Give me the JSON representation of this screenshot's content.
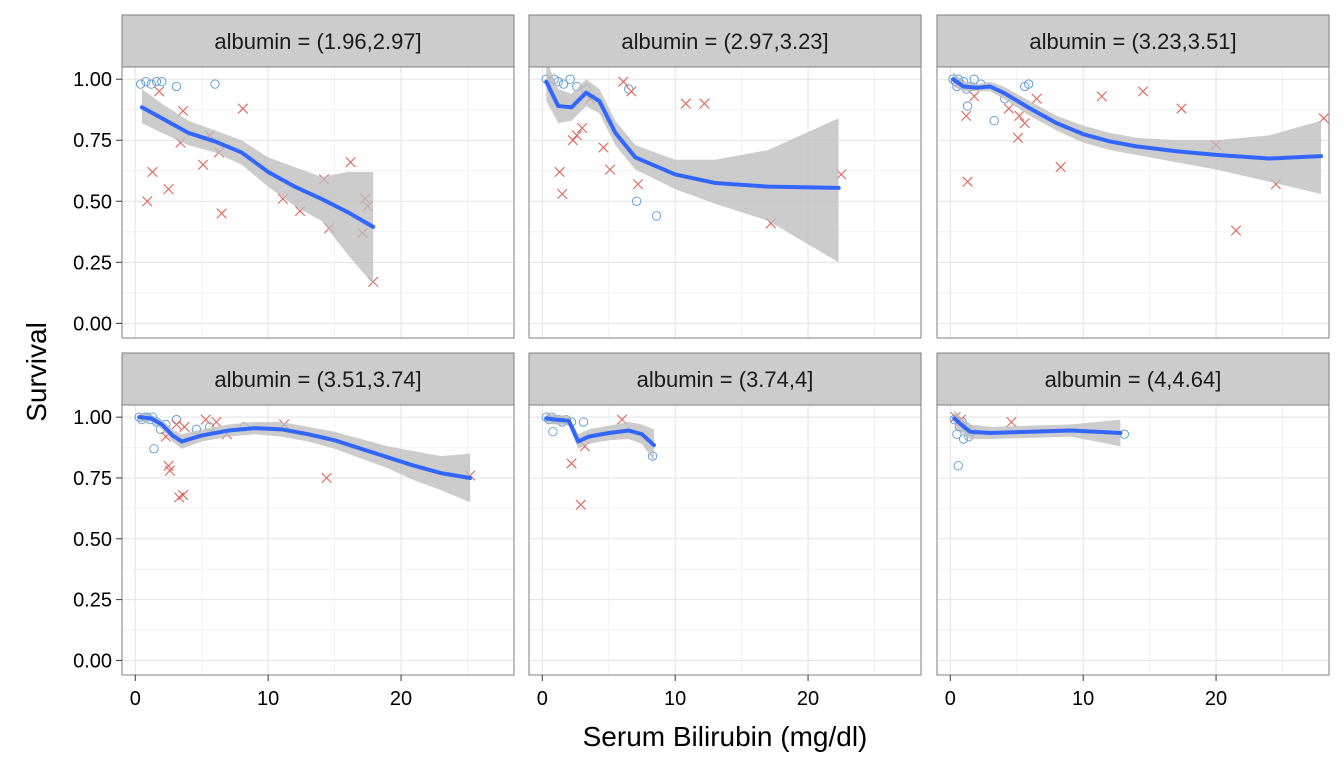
{
  "chart_data": {
    "type": "scatter",
    "xlabel": "Serum Bilirubin (mg/dl)",
    "ylabel": "Survival",
    "xlim": [
      -1,
      28.5
    ],
    "ylim": [
      -0.06,
      1.05
    ],
    "x_ticks": [
      0,
      10,
      20
    ],
    "y_ticks": [
      0.0,
      0.25,
      0.5,
      0.75,
      1.0
    ],
    "y_tick_labels": [
      "0.00",
      "0.25",
      "0.50",
      "0.75",
      "1.00"
    ],
    "grid": true,
    "facet_layout": "2x3",
    "colors": {
      "censored": "#5b9bd5",
      "event": "#e0645a",
      "smooth": "#3366ff",
      "ribbon": "#bebebe",
      "strip": "#cccccc"
    },
    "panels": [
      {
        "label": "albumin = (1.96,2.97]",
        "circles": [
          [
            0.4,
            0.98
          ],
          [
            0.8,
            0.99
          ],
          [
            1.2,
            0.98
          ],
          [
            1.6,
            0.99
          ],
          [
            2.0,
            0.99
          ],
          [
            3.1,
            0.97
          ],
          [
            6.0,
            0.98
          ]
        ],
        "crosses": [
          [
            0.9,
            0.5
          ],
          [
            1.3,
            0.62
          ],
          [
            1.8,
            0.95
          ],
          [
            2.5,
            0.55
          ],
          [
            3.4,
            0.74
          ],
          [
            3.6,
            0.87
          ],
          [
            5.1,
            0.65
          ],
          [
            5.6,
            0.77
          ],
          [
            6.3,
            0.7
          ],
          [
            6.5,
            0.45
          ],
          [
            8.1,
            0.88
          ],
          [
            11.1,
            0.51
          ],
          [
            12.4,
            0.46
          ],
          [
            14.2,
            0.59
          ],
          [
            14.6,
            0.39
          ],
          [
            16.2,
            0.66
          ],
          [
            17.1,
            0.37
          ],
          [
            17.3,
            0.51
          ],
          [
            17.5,
            0.48
          ],
          [
            17.9,
            0.17
          ]
        ],
        "smooth": [
          [
            0.5,
            0.885
          ],
          [
            2,
            0.84
          ],
          [
            4,
            0.78
          ],
          [
            6,
            0.745
          ],
          [
            8,
            0.7
          ],
          [
            10,
            0.62
          ],
          [
            12,
            0.56
          ],
          [
            14,
            0.51
          ],
          [
            16,
            0.455
          ],
          [
            17.9,
            0.395
          ]
        ],
        "band": [
          [
            0.5,
            0.82,
            0.96
          ],
          [
            2,
            0.78,
            0.9
          ],
          [
            4,
            0.73,
            0.83
          ],
          [
            6,
            0.7,
            0.79
          ],
          [
            8,
            0.65,
            0.75
          ],
          [
            10,
            0.56,
            0.68
          ],
          [
            12,
            0.48,
            0.64
          ],
          [
            14,
            0.42,
            0.6
          ],
          [
            16,
            0.28,
            0.62
          ],
          [
            17.9,
            0.16,
            0.62
          ]
        ]
      },
      {
        "label": "albumin = (2.97,3.23]",
        "circles": [
          [
            0.3,
            1.0
          ],
          [
            0.6,
            0.99
          ],
          [
            0.9,
            1.0
          ],
          [
            1.2,
            0.99
          ],
          [
            1.6,
            0.98
          ],
          [
            2.1,
            1.0
          ],
          [
            2.6,
            0.97
          ],
          [
            3.3,
            0.96
          ],
          [
            6.5,
            0.96
          ],
          [
            7.1,
            0.5
          ],
          [
            8.6,
            0.44
          ]
        ],
        "crosses": [
          [
            1.3,
            0.62
          ],
          [
            1.5,
            0.53
          ],
          [
            2.3,
            0.75
          ],
          [
            2.6,
            0.77
          ],
          [
            3.0,
            0.8
          ],
          [
            3.6,
            0.92
          ],
          [
            4.6,
            0.72
          ],
          [
            5.1,
            0.63
          ],
          [
            6.1,
            0.99
          ],
          [
            6.7,
            0.95
          ],
          [
            7.2,
            0.57
          ],
          [
            10.8,
            0.9
          ],
          [
            12.2,
            0.9
          ],
          [
            17.2,
            0.41
          ],
          [
            22.5,
            0.61
          ]
        ],
        "smooth": [
          [
            0.3,
            0.99
          ],
          [
            1.2,
            0.89
          ],
          [
            2.2,
            0.885
          ],
          [
            3.3,
            0.945
          ],
          [
            4.3,
            0.91
          ],
          [
            5.5,
            0.78
          ],
          [
            7,
            0.68
          ],
          [
            10,
            0.61
          ],
          [
            13,
            0.575
          ],
          [
            17,
            0.56
          ],
          [
            22.3,
            0.555
          ]
        ],
        "band": [
          [
            0.3,
            0.91,
            1.08
          ],
          [
            1.2,
            0.82,
            0.96
          ],
          [
            2.2,
            0.83,
            0.94
          ],
          [
            3.3,
            0.89,
            1.0
          ],
          [
            4.3,
            0.86,
            0.96
          ],
          [
            5.5,
            0.73,
            0.83
          ],
          [
            7,
            0.63,
            0.73
          ],
          [
            10,
            0.55,
            0.67
          ],
          [
            13,
            0.49,
            0.67
          ],
          [
            17,
            0.42,
            0.71
          ],
          [
            22.3,
            0.25,
            0.84
          ]
        ]
      },
      {
        "label": "albumin = (3.23,3.51]",
        "circles": [
          [
            0.2,
            1.0
          ],
          [
            0.4,
            0.99
          ],
          [
            0.5,
            0.97
          ],
          [
            0.6,
            1.0
          ],
          [
            0.8,
            0.98
          ],
          [
            1.0,
            0.99
          ],
          [
            1.2,
            0.96
          ],
          [
            1.3,
            0.89
          ],
          [
            1.5,
            0.97
          ],
          [
            1.8,
            1.0
          ],
          [
            2.3,
            0.98
          ],
          [
            3.3,
            0.83
          ],
          [
            4.1,
            0.92
          ],
          [
            5.6,
            0.97
          ],
          [
            5.9,
            0.98
          ]
        ],
        "crosses": [
          [
            1.2,
            0.85
          ],
          [
            1.3,
            0.58
          ],
          [
            1.8,
            0.93
          ],
          [
            4.4,
            0.88
          ],
          [
            5.1,
            0.76
          ],
          [
            5.2,
            0.85
          ],
          [
            5.6,
            0.82
          ],
          [
            6.5,
            0.92
          ],
          [
            8.3,
            0.64
          ],
          [
            11.4,
            0.93
          ],
          [
            14.5,
            0.95
          ],
          [
            17.4,
            0.88
          ],
          [
            20.0,
            0.73
          ],
          [
            21.5,
            0.38
          ],
          [
            24.5,
            0.57
          ],
          [
            28.1,
            0.84
          ]
        ],
        "smooth": [
          [
            0.2,
            1.0
          ],
          [
            1,
            0.97
          ],
          [
            2,
            0.965
          ],
          [
            3,
            0.97
          ],
          [
            4,
            0.945
          ],
          [
            6,
            0.88
          ],
          [
            8,
            0.82
          ],
          [
            10,
            0.775
          ],
          [
            12,
            0.745
          ],
          [
            14,
            0.725
          ],
          [
            17,
            0.705
          ],
          [
            20,
            0.69
          ],
          [
            24,
            0.675
          ],
          [
            27.9,
            0.685
          ]
        ],
        "band": [
          [
            0.2,
            0.97,
            1.03
          ],
          [
            1,
            0.95,
            0.99
          ],
          [
            2,
            0.95,
            0.98
          ],
          [
            3,
            0.95,
            0.99
          ],
          [
            4,
            0.92,
            0.97
          ],
          [
            6,
            0.85,
            0.91
          ],
          [
            8,
            0.79,
            0.85
          ],
          [
            10,
            0.74,
            0.81
          ],
          [
            12,
            0.71,
            0.78
          ],
          [
            14,
            0.69,
            0.76
          ],
          [
            17,
            0.66,
            0.75
          ],
          [
            20,
            0.63,
            0.75
          ],
          [
            24,
            0.58,
            0.77
          ],
          [
            27.9,
            0.53,
            0.83
          ]
        ]
      },
      {
        "label": "albumin = (3.51,3.74]",
        "circles": [
          [
            0.3,
            1.0
          ],
          [
            0.5,
            0.99
          ],
          [
            0.7,
            1.0
          ],
          [
            0.9,
            1.0
          ],
          [
            1.1,
            0.99
          ],
          [
            1.3,
            1.0
          ],
          [
            1.4,
            0.87
          ],
          [
            1.6,
            0.98
          ],
          [
            1.9,
            0.95
          ],
          [
            2.3,
            0.97
          ],
          [
            3.1,
            0.99
          ],
          [
            4.6,
            0.95
          ],
          [
            5.6,
            0.96
          ],
          [
            8.2,
            0.96
          ]
        ],
        "crosses": [
          [
            2.3,
            0.92
          ],
          [
            2.5,
            0.8
          ],
          [
            2.6,
            0.78
          ],
          [
            3.1,
            0.97
          ],
          [
            3.3,
            0.67
          ],
          [
            3.6,
            0.68
          ],
          [
            3.7,
            0.96
          ],
          [
            5.3,
            0.99
          ],
          [
            6.1,
            0.98
          ],
          [
            6.9,
            0.93
          ],
          [
            11.2,
            0.97
          ],
          [
            14.4,
            0.75
          ],
          [
            25.2,
            0.76
          ]
        ],
        "smooth": [
          [
            0.3,
            1.0
          ],
          [
            1.2,
            0.995
          ],
          [
            2,
            0.97
          ],
          [
            2.8,
            0.925
          ],
          [
            3.5,
            0.9
          ],
          [
            5,
            0.925
          ],
          [
            7,
            0.945
          ],
          [
            9,
            0.955
          ],
          [
            11,
            0.95
          ],
          [
            13,
            0.93
          ],
          [
            15,
            0.905
          ],
          [
            17,
            0.87
          ],
          [
            19,
            0.835
          ],
          [
            21,
            0.8
          ],
          [
            23,
            0.77
          ],
          [
            25.2,
            0.75
          ]
        ],
        "band": [
          [
            0.3,
            0.98,
            1.02
          ],
          [
            1.2,
            0.98,
            1.01
          ],
          [
            2,
            0.95,
            0.99
          ],
          [
            2.8,
            0.9,
            0.95
          ],
          [
            3.5,
            0.87,
            0.93
          ],
          [
            5,
            0.9,
            0.95
          ],
          [
            7,
            0.92,
            0.97
          ],
          [
            9,
            0.93,
            0.98
          ],
          [
            11,
            0.92,
            0.98
          ],
          [
            13,
            0.9,
            0.96
          ],
          [
            15,
            0.87,
            0.94
          ],
          [
            17,
            0.83,
            0.91
          ],
          [
            19,
            0.79,
            0.88
          ],
          [
            21,
            0.74,
            0.86
          ],
          [
            23,
            0.7,
            0.84
          ],
          [
            25.2,
            0.65,
            0.85
          ]
        ]
      },
      {
        "label": "albumin = (3.74,4]",
        "circles": [
          [
            0.3,
            1.0
          ],
          [
            0.5,
            0.99
          ],
          [
            0.7,
            1.0
          ],
          [
            0.8,
            0.94
          ],
          [
            1.0,
            0.99
          ],
          [
            1.2,
            0.99
          ],
          [
            1.5,
            0.98
          ],
          [
            1.8,
            0.99
          ],
          [
            2.2,
            0.98
          ],
          [
            3.1,
            0.98
          ],
          [
            8.3,
            0.84
          ]
        ],
        "crosses": [
          [
            2.2,
            0.81
          ],
          [
            2.9,
            0.64
          ],
          [
            3.2,
            0.88
          ],
          [
            6.0,
            0.99
          ]
        ],
        "smooth": [
          [
            0.3,
            0.995
          ],
          [
            1,
            0.99
          ],
          [
            2,
            0.985
          ],
          [
            2.7,
            0.9
          ],
          [
            3.5,
            0.92
          ],
          [
            5,
            0.935
          ],
          [
            6.5,
            0.945
          ],
          [
            7.5,
            0.93
          ],
          [
            8.4,
            0.885
          ]
        ],
        "band": [
          [
            0.3,
            0.975,
            1.015
          ],
          [
            1,
            0.97,
            1.01
          ],
          [
            2,
            0.965,
            1.005
          ],
          [
            2.7,
            0.87,
            0.93
          ],
          [
            3.5,
            0.89,
            0.95
          ],
          [
            5,
            0.905,
            0.965
          ],
          [
            6.5,
            0.91,
            0.98
          ],
          [
            7.5,
            0.89,
            0.97
          ],
          [
            8.4,
            0.82,
            0.95
          ]
        ]
      },
      {
        "label": "albumin = (4,4.64]",
        "circles": [
          [
            0.3,
            0.99
          ],
          [
            0.5,
            0.93
          ],
          [
            0.6,
            0.8
          ],
          [
            0.7,
            0.96
          ],
          [
            0.9,
            0.98
          ],
          [
            1.0,
            0.91
          ],
          [
            1.2,
            0.96
          ],
          [
            1.4,
            0.92
          ],
          [
            1.6,
            0.94
          ],
          [
            13.1,
            0.93
          ]
        ],
        "crosses": [
          [
            0.4,
            1.0
          ],
          [
            0.8,
            0.99
          ],
          [
            4.6,
            0.98
          ]
        ],
        "smooth": [
          [
            0.3,
            0.995
          ],
          [
            0.8,
            0.97
          ],
          [
            1.5,
            0.94
          ],
          [
            3,
            0.935
          ],
          [
            6,
            0.94
          ],
          [
            9,
            0.945
          ],
          [
            11,
            0.94
          ],
          [
            12.8,
            0.935
          ]
        ],
        "band": [
          [
            0.3,
            0.96,
            1.03
          ],
          [
            0.8,
            0.94,
            1.0
          ],
          [
            1.5,
            0.91,
            0.97
          ],
          [
            3,
            0.91,
            0.96
          ],
          [
            6,
            0.915,
            0.965
          ],
          [
            9,
            0.92,
            0.97
          ],
          [
            11,
            0.9,
            0.98
          ],
          [
            12.8,
            0.88,
            0.99
          ]
        ]
      }
    ]
  }
}
